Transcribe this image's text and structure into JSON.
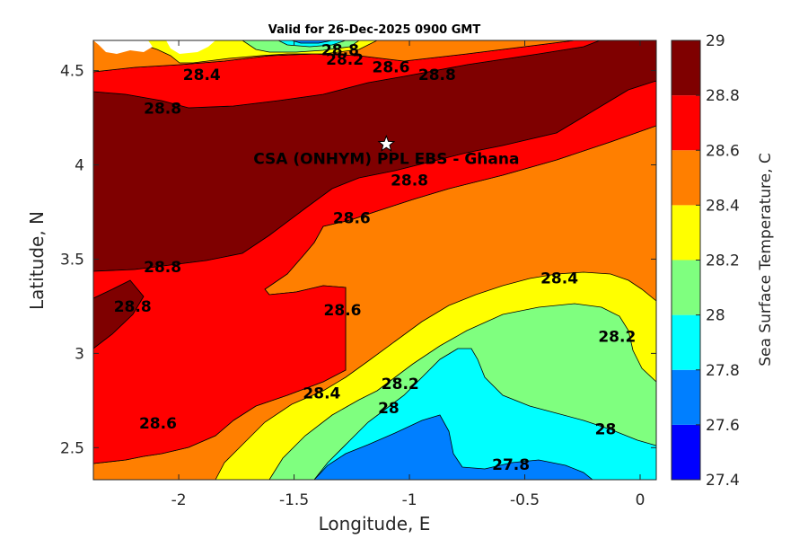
{
  "chart_data": {
    "type": "contour",
    "title": "Valid for 26-Dec-2025 0900 GMT",
    "xlabel": "Longitude, E",
    "ylabel": "Latitude, N",
    "xlim": [
      -2.37,
      0.07
    ],
    "ylim": [
      2.33,
      4.66
    ],
    "xticks": [
      -2,
      -1.5,
      -1,
      -0.5,
      0
    ],
    "xtick_labels": [
      "-2",
      "-1.5",
      "-1",
      "-0.5",
      "0"
    ],
    "yticks": [
      2.5,
      3,
      3.5,
      4,
      4.5
    ],
    "ytick_labels": [
      "2.5",
      "3",
      "3.5",
      "4",
      "4.5"
    ],
    "colorbar": {
      "label": "Sea Surface Temperature, C",
      "levels": [
        27.4,
        27.6,
        27.8,
        28,
        28.2,
        28.4,
        28.6,
        28.8,
        29
      ],
      "level_labels": [
        "27.4",
        "27.6",
        "27.8",
        "28",
        "28.2",
        "28.4",
        "28.6",
        "28.8",
        "29"
      ],
      "colors": [
        "#0000ff",
        "#007fff",
        "#00ffff",
        "#7fff7f",
        "#ffff00",
        "#ff7f00",
        "#ff0000",
        "#7f0000"
      ]
    },
    "contour_labels": [
      {
        "text": "28.8",
        "lon": -1.3,
        "lat": 4.61
      },
      {
        "text": "28.2",
        "lon": -1.28,
        "lat": 4.56
      },
      {
        "text": "28.4",
        "lon": -1.9,
        "lat": 4.48
      },
      {
        "text": "28.6",
        "lon": -1.08,
        "lat": 4.52
      },
      {
        "text": "28.8",
        "lon": -0.88,
        "lat": 4.48
      },
      {
        "text": "28.8",
        "lon": -2.07,
        "lat": 4.3
      },
      {
        "text": "28.8",
        "lon": -1.0,
        "lat": 3.92
      },
      {
        "text": "28.6",
        "lon": -1.25,
        "lat": 3.72
      },
      {
        "text": "28.8",
        "lon": -2.07,
        "lat": 3.46
      },
      {
        "text": "28.8",
        "lon": -2.2,
        "lat": 3.25
      },
      {
        "text": "28.6",
        "lon": -1.29,
        "lat": 3.23
      },
      {
        "text": "28.4",
        "lon": -0.35,
        "lat": 3.4
      },
      {
        "text": "28.2",
        "lon": -0.1,
        "lat": 3.09
      },
      {
        "text": "28.2",
        "lon": -1.04,
        "lat": 2.84
      },
      {
        "text": "28.4",
        "lon": -1.38,
        "lat": 2.79
      },
      {
        "text": "28",
        "lon": -1.09,
        "lat": 2.71
      },
      {
        "text": "28.6",
        "lon": -2.09,
        "lat": 2.63
      },
      {
        "text": "28",
        "lon": -0.15,
        "lat": 2.6
      },
      {
        "text": "27.8",
        "lon": -0.56,
        "lat": 2.41
      }
    ],
    "site": {
      "name": "CSA (ONHYM) PPL EBS  - Ghana",
      "lon": -1.1,
      "lat": 4.11
    }
  }
}
